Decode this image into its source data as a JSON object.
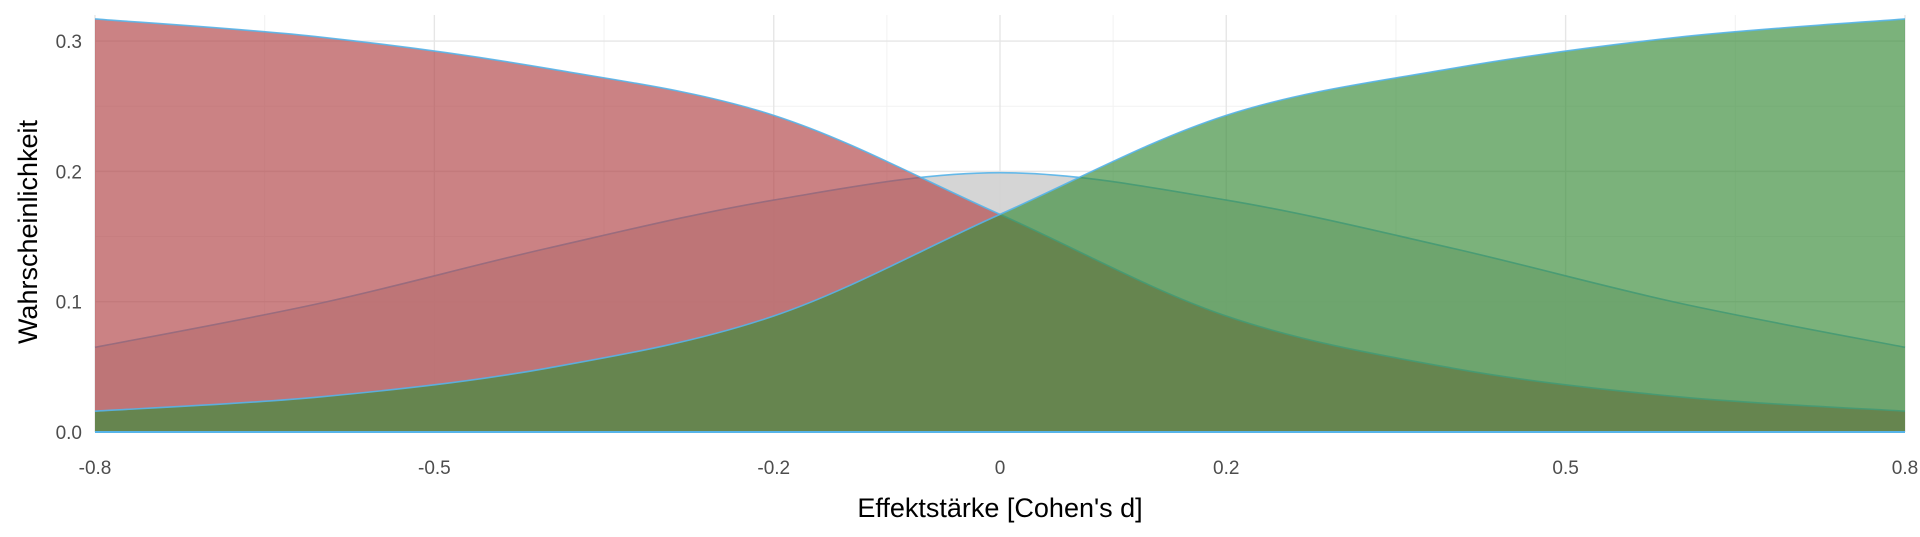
{
  "chart_data": {
    "type": "area",
    "xlabel": "Effektstärke [Cohen's d]",
    "ylabel": "Wahrscheinlichkeit",
    "xlim": [
      -0.8,
      0.8
    ],
    "ylim": [
      0,
      0.32
    ],
    "x_ticks": [
      -0.8,
      -0.5,
      -0.2,
      0,
      0.2,
      0.5,
      0.8
    ],
    "x_tick_labels": [
      "-0.8",
      "-0.5",
      "-0.2",
      "0",
      "0.2",
      "0.5",
      "0.8"
    ],
    "y_ticks": [
      0,
      0.1,
      0.2,
      0.3
    ],
    "y_tick_labels": [
      "0.0",
      "0.1",
      "0.2",
      "0.3"
    ],
    "grid": true,
    "outline_color": "#56b4e9",
    "series": [
      {
        "fill": "#d3d3d3",
        "x": [
          -0.8,
          -0.6,
          -0.4,
          -0.2,
          0,
          0.2,
          0.4,
          0.6,
          0.8
        ],
        "values": [
          0.065,
          0.099,
          0.141,
          0.178,
          0.199,
          0.178,
          0.141,
          0.099,
          0.065
        ]
      },
      {
        "fill": "#b2474a",
        "x": [
          -0.8,
          -0.6,
          -0.4,
          -0.2,
          0,
          0.2,
          0.4,
          0.6,
          0.8
        ],
        "values": [
          0.317,
          0.303,
          0.279,
          0.243,
          0.167,
          0.089,
          0.049,
          0.027,
          0.016
        ]
      },
      {
        "fill": "#3c8e3d",
        "x": [
          -0.8,
          -0.6,
          -0.4,
          -0.2,
          0,
          0.2,
          0.4,
          0.6,
          0.8
        ],
        "values": [
          0.016,
          0.027,
          0.049,
          0.089,
          0.167,
          0.243,
          0.279,
          0.303,
          0.317
        ]
      }
    ]
  }
}
